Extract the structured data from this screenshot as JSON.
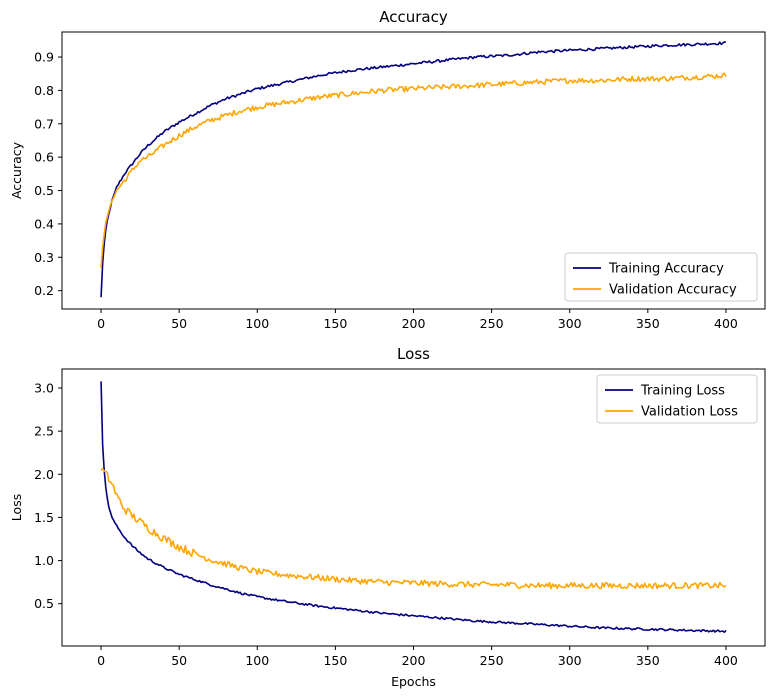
{
  "chart_data": [
    {
      "type": "line",
      "title": "Accuracy",
      "xlabel": "",
      "ylabel": "Accuracy",
      "xlim": [
        -25,
        425
      ],
      "ylim": [
        0.145,
        0.975
      ],
      "xticks": [
        0,
        50,
        100,
        150,
        200,
        250,
        300,
        350,
        400
      ],
      "xtick_labels": [
        "0",
        "50",
        "100",
        "150",
        "200",
        "250",
        "300",
        "350",
        "400"
      ],
      "yticks": [
        0.2,
        0.3,
        0.4,
        0.5,
        0.6,
        0.7,
        0.8,
        0.9
      ],
      "ytick_labels": [
        "0.2",
        "0.3",
        "0.4",
        "0.5",
        "0.6",
        "0.7",
        "0.8",
        "0.9"
      ],
      "legend_position": "lower-right",
      "series": [
        {
          "name": "Training Accuracy",
          "color": "#000080",
          "x": [
            0,
            1,
            2,
            3,
            4,
            5,
            7,
            10,
            15,
            20,
            25,
            30,
            40,
            50,
            60,
            70,
            80,
            90,
            100,
            120,
            140,
            160,
            180,
            200,
            220,
            240,
            260,
            280,
            300,
            320,
            340,
            360,
            380,
            400
          ],
          "y": [
            0.18,
            0.28,
            0.34,
            0.38,
            0.41,
            0.43,
            0.47,
            0.51,
            0.55,
            0.58,
            0.61,
            0.635,
            0.675,
            0.705,
            0.73,
            0.755,
            0.775,
            0.79,
            0.805,
            0.825,
            0.845,
            0.86,
            0.87,
            0.88,
            0.89,
            0.9,
            0.905,
            0.915,
            0.92,
            0.925,
            0.93,
            0.935,
            0.938,
            0.942
          ]
        },
        {
          "name": "Validation Accuracy",
          "color": "#FFA500",
          "x": [
            0,
            1,
            2,
            3,
            4,
            5,
            7,
            10,
            15,
            20,
            25,
            30,
            40,
            50,
            60,
            70,
            80,
            90,
            100,
            120,
            140,
            160,
            180,
            200,
            220,
            240,
            260,
            280,
            300,
            320,
            340,
            360,
            380,
            400
          ],
          "y": [
            0.27,
            0.33,
            0.37,
            0.4,
            0.42,
            0.44,
            0.47,
            0.5,
            0.53,
            0.56,
            0.59,
            0.6,
            0.635,
            0.665,
            0.69,
            0.71,
            0.725,
            0.74,
            0.75,
            0.765,
            0.78,
            0.79,
            0.8,
            0.805,
            0.81,
            0.815,
            0.82,
            0.825,
            0.83,
            0.83,
            0.835,
            0.835,
            0.84,
            0.845
          ]
        }
      ]
    },
    {
      "type": "line",
      "title": "Loss",
      "xlabel": "Epochs",
      "ylabel": "Loss",
      "xlim": [
        -25,
        425
      ],
      "ylim": [
        0.01,
        3.22
      ],
      "xticks": [
        0,
        50,
        100,
        150,
        200,
        250,
        300,
        350,
        400
      ],
      "xtick_labels": [
        "0",
        "50",
        "100",
        "150",
        "200",
        "250",
        "300",
        "350",
        "400"
      ],
      "yticks": [
        0.5,
        1.0,
        1.5,
        2.0,
        2.5,
        3.0
      ],
      "ytick_labels": [
        "0.5",
        "1.0",
        "1.5",
        "2.0",
        "2.5",
        "3.0"
      ],
      "legend_position": "top-right",
      "series": [
        {
          "name": "Training Loss",
          "color": "#000080",
          "x": [
            0,
            1,
            2,
            3,
            4,
            5,
            7,
            10,
            15,
            20,
            25,
            30,
            40,
            50,
            60,
            70,
            80,
            90,
            100,
            120,
            140,
            160,
            180,
            200,
            220,
            240,
            260,
            280,
            300,
            320,
            340,
            360,
            380,
            400
          ],
          "y": [
            3.08,
            2.35,
            2.05,
            1.85,
            1.72,
            1.62,
            1.5,
            1.4,
            1.27,
            1.17,
            1.09,
            1.02,
            0.92,
            0.84,
            0.78,
            0.72,
            0.67,
            0.62,
            0.58,
            0.52,
            0.47,
            0.43,
            0.39,
            0.36,
            0.33,
            0.3,
            0.28,
            0.26,
            0.24,
            0.22,
            0.21,
            0.2,
            0.19,
            0.18
          ]
        },
        {
          "name": "Validation Loss",
          "color": "#FFA500",
          "x": [
            0,
            2,
            4,
            6,
            8,
            10,
            15,
            20,
            25,
            30,
            40,
            50,
            60,
            70,
            80,
            90,
            100,
            120,
            140,
            160,
            180,
            200,
            220,
            240,
            260,
            280,
            300,
            320,
            340,
            360,
            380,
            400
          ],
          "y": [
            2.07,
            2.02,
            1.98,
            1.92,
            1.85,
            1.75,
            1.6,
            1.52,
            1.45,
            1.38,
            1.26,
            1.16,
            1.08,
            1.01,
            0.96,
            0.91,
            0.87,
            0.83,
            0.8,
            0.77,
            0.75,
            0.74,
            0.73,
            0.72,
            0.72,
            0.71,
            0.71,
            0.71,
            0.71,
            0.71,
            0.71,
            0.71
          ]
        }
      ]
    }
  ]
}
